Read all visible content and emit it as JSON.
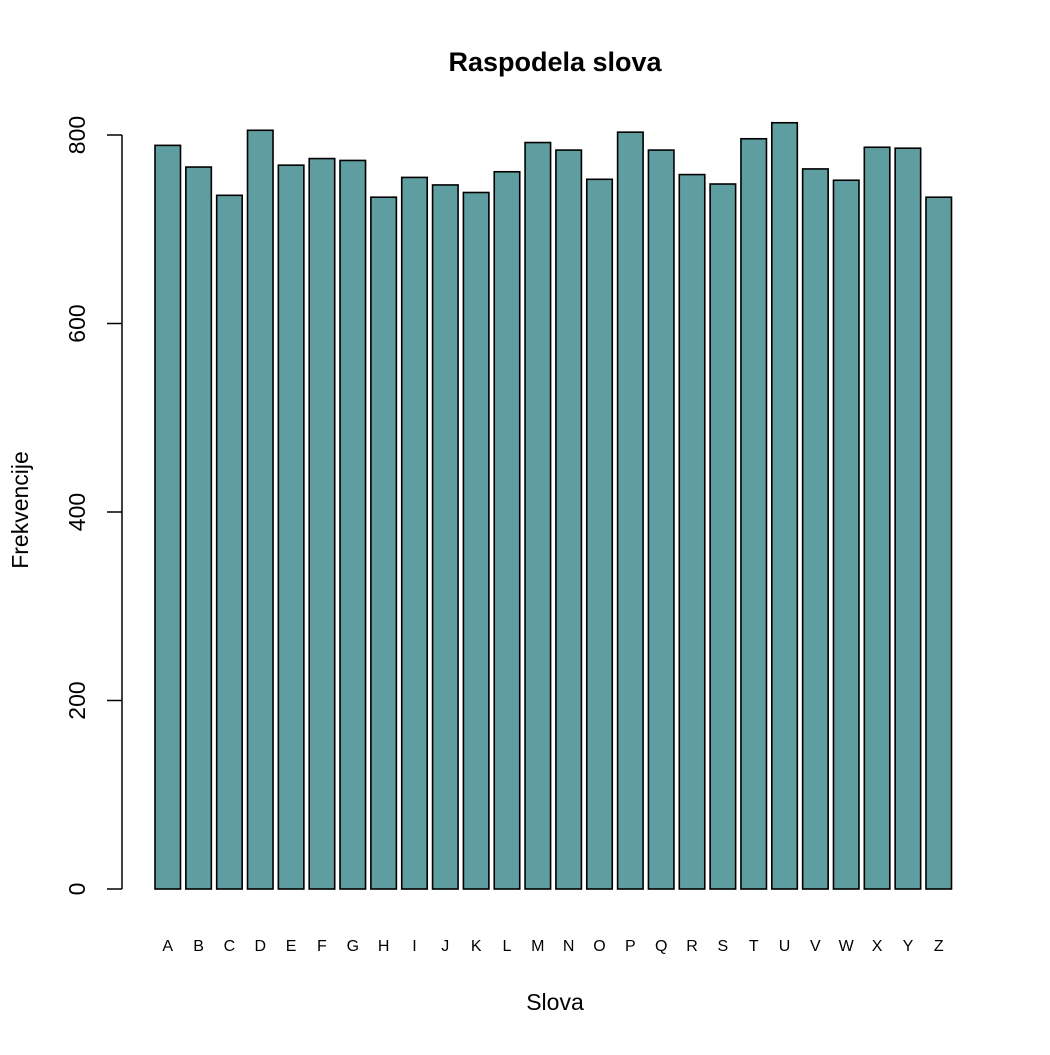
{
  "chart_data": {
    "type": "bar",
    "title": "Raspodela slova",
    "xlabel": "Slova",
    "ylabel": "Frekvencije",
    "categories": [
      "A",
      "B",
      "C",
      "D",
      "E",
      "F",
      "G",
      "H",
      "I",
      "J",
      "K",
      "L",
      "M",
      "N",
      "O",
      "P",
      "Q",
      "R",
      "S",
      "T",
      "U",
      "V",
      "W",
      "X",
      "Y",
      "Z"
    ],
    "values": [
      789,
      766,
      736,
      805,
      768,
      775,
      773,
      734,
      755,
      747,
      739,
      761,
      792,
      784,
      753,
      803,
      784,
      758,
      748,
      796,
      813,
      764,
      752,
      787,
      786,
      734
    ],
    "ylim": [
      0,
      800
    ],
    "yticks": [
      "0",
      "200",
      "400",
      "600",
      "800"
    ],
    "grid": false,
    "bar_color": "#5f9ea0",
    "bar_border_color": "#000000"
  }
}
